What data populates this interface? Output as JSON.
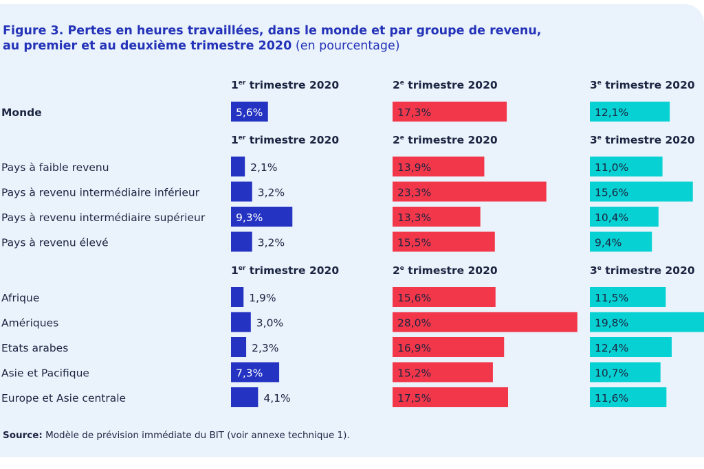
{
  "title": {
    "line1": "Figure 3.  Pertes en heures travaillées, dans le monde et par groupe de revenu,",
    "line2": "au premier et au deuxième trimestre 2020",
    "unit": "(en pourcentage)"
  },
  "source": {
    "label": "Source:",
    "text": "Modèle de prévision immédiate du BIT (voir annexe technique 1)."
  },
  "colors": {
    "background": "#eaf3fb",
    "title": "#2433b8",
    "q1": "#2433c2",
    "q2": "#f2374a",
    "q3": "#08d1d3",
    "text": "#1b2440"
  },
  "chart_data": {
    "type": "bar",
    "value_format": "percent with comma decimal",
    "series": [
      {
        "key": "q1",
        "num": "1",
        "sup": "er",
        "rest": " trimestre 2020"
      },
      {
        "key": "q2",
        "num": "2",
        "sup": "e",
        "rest": " trimestre 2020"
      },
      {
        "key": "q3",
        "num": "3",
        "sup": "e",
        "rest": " trimestre 2020"
      }
    ],
    "groups": [
      {
        "rows": [
          {
            "label": "Monde",
            "bold": true,
            "values": [
              5.6,
              17.3,
              12.1
            ]
          }
        ]
      },
      {
        "rows": [
          {
            "label": "Pays à faible revenu",
            "values": [
              2.1,
              13.9,
              11.0
            ]
          },
          {
            "label": "Pays à revenu intermédiaire inférieur",
            "values": [
              3.2,
              23.3,
              15.6
            ]
          },
          {
            "label": "Pays à revenu intermédiaire supérieur",
            "values": [
              9.3,
              13.3,
              10.4
            ]
          },
          {
            "label": "Pays à revenu élevé",
            "values": [
              3.2,
              15.5,
              9.4
            ]
          }
        ]
      },
      {
        "rows": [
          {
            "label": "Afrique",
            "values": [
              1.9,
              15.6,
              11.5
            ]
          },
          {
            "label": "Amériques",
            "values": [
              3.0,
              28.0,
              19.8
            ]
          },
          {
            "label": "Etats arabes",
            "values": [
              2.3,
              16.9,
              12.4
            ]
          },
          {
            "label": "Asie et Pacifique",
            "values": [
              7.3,
              15.2,
              10.7
            ]
          },
          {
            "label": "Europe et Asie centrale",
            "values": [
              4.1,
              17.5,
              11.6
            ]
          }
        ]
      }
    ]
  }
}
